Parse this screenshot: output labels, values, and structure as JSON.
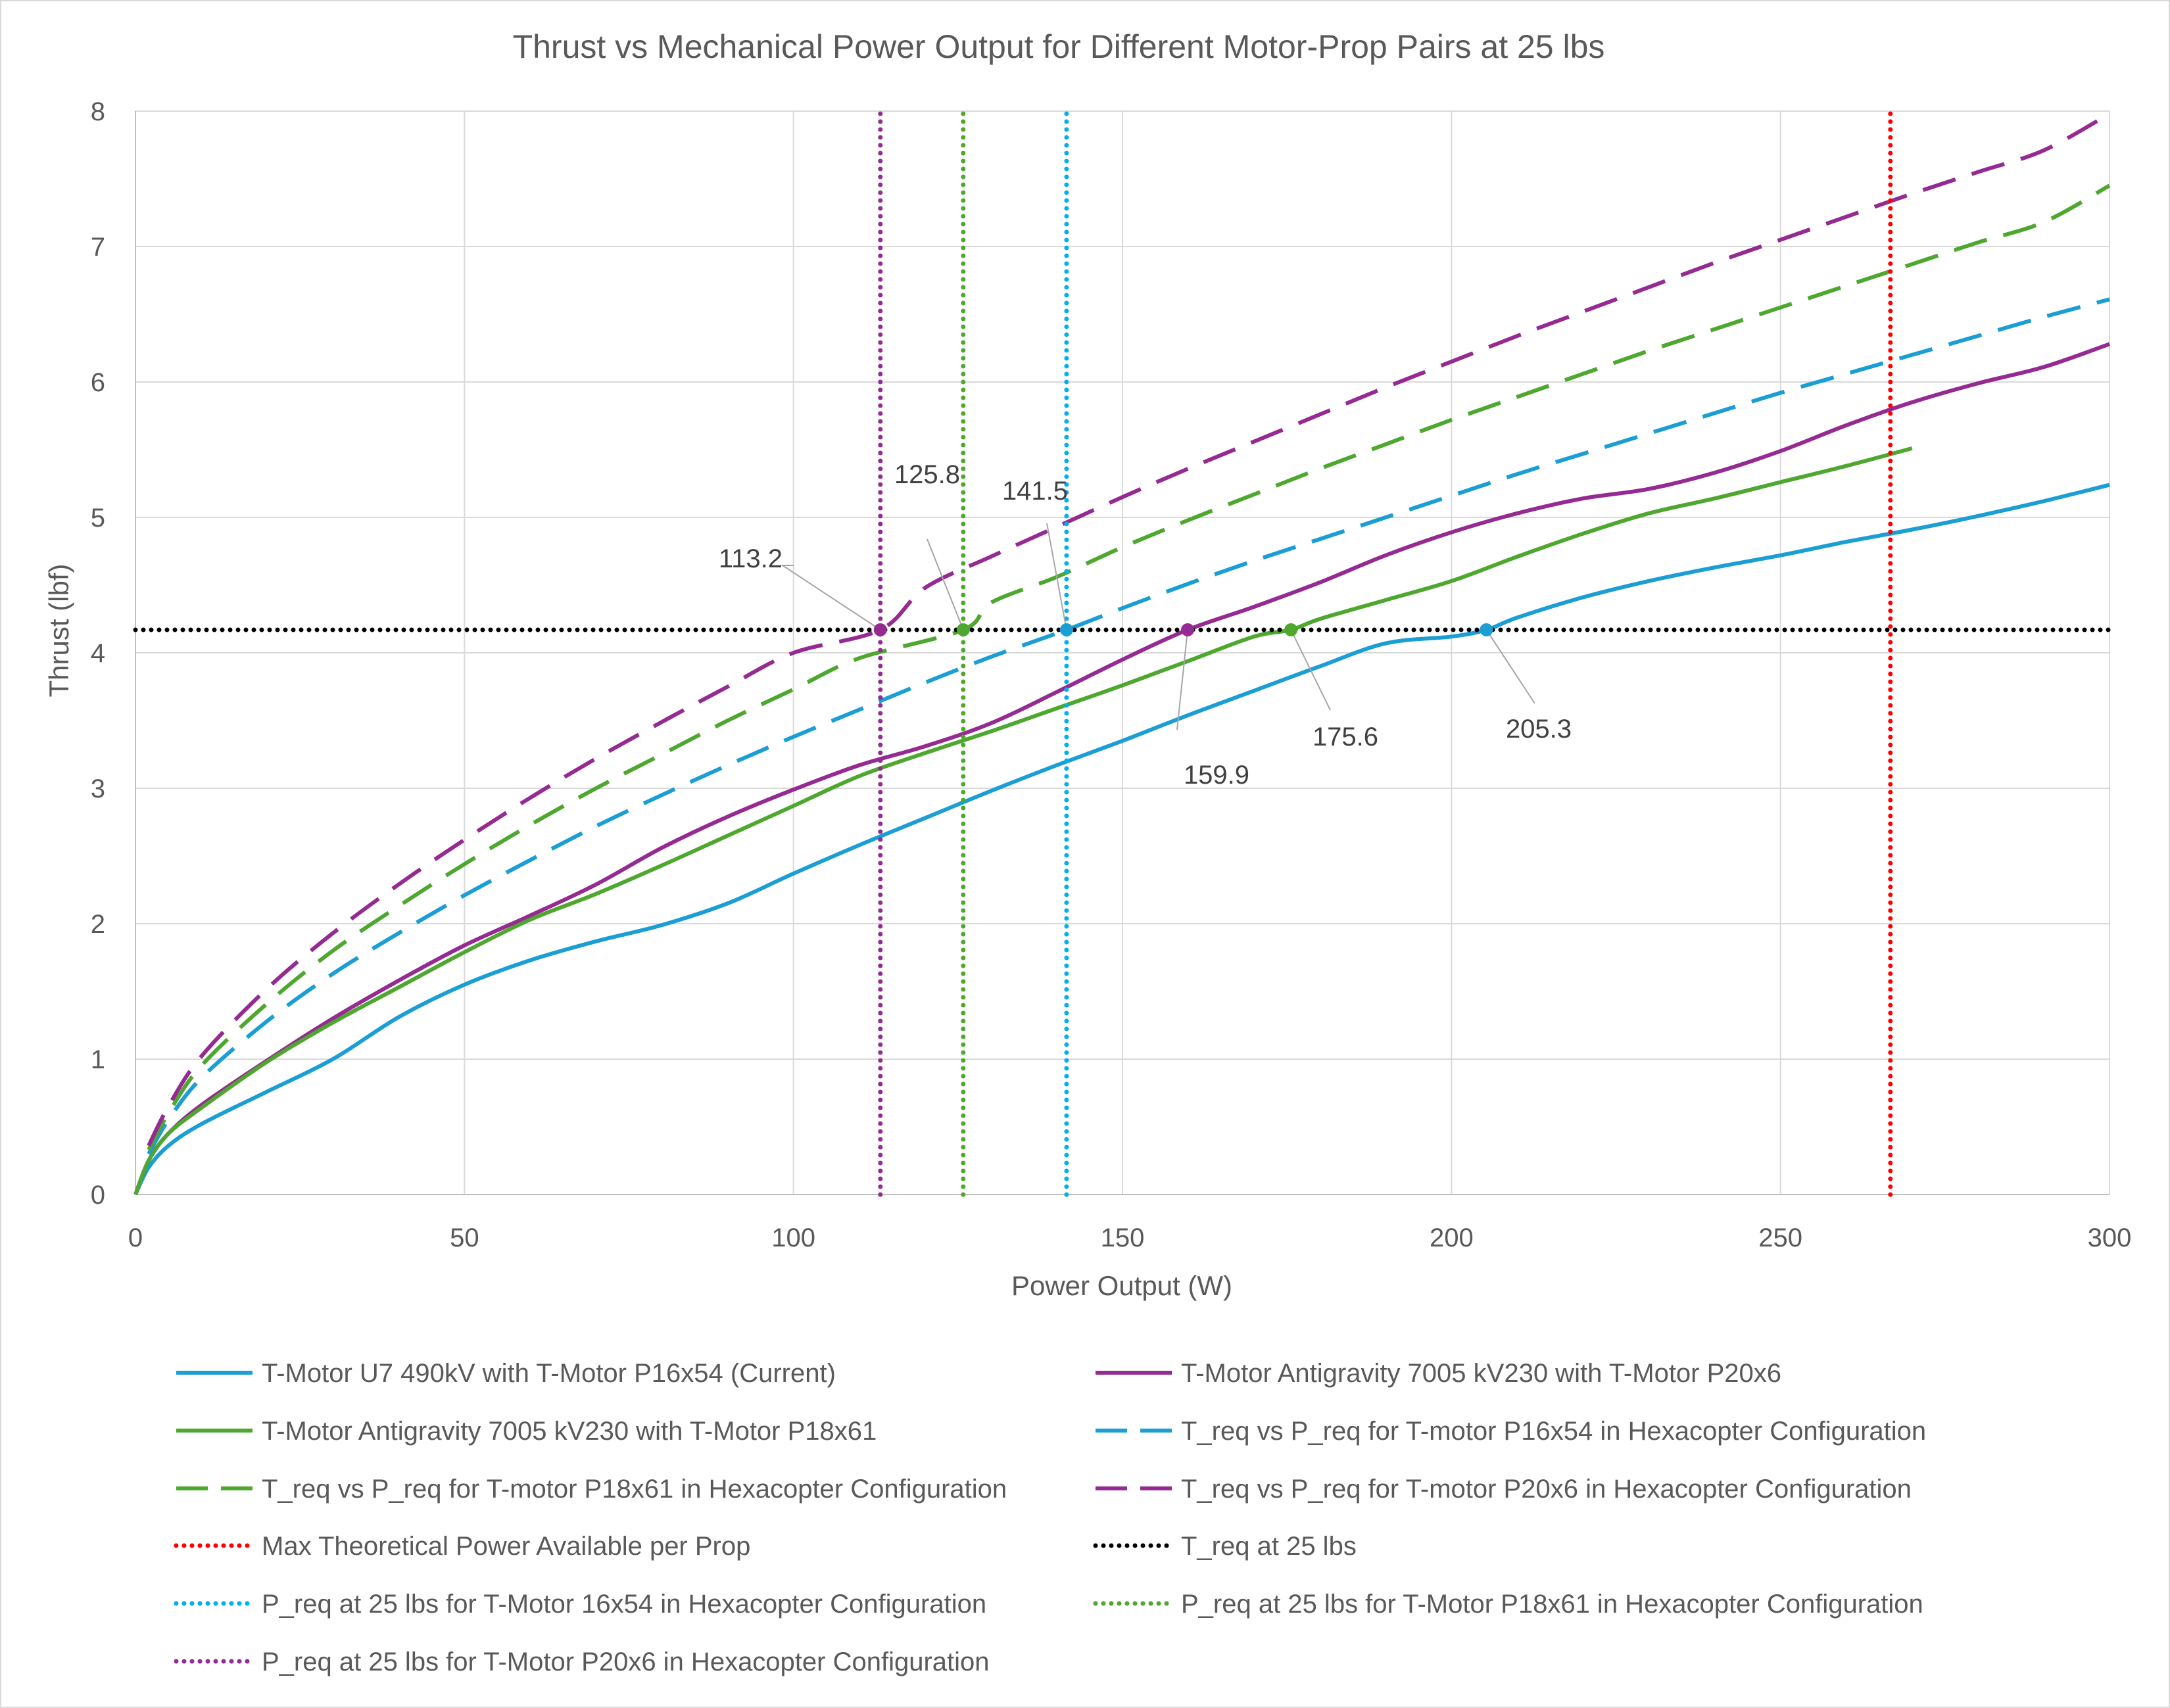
{
  "chart_data": {
    "type": "line",
    "title": "Thrust vs Mechanical Power Output for Different Motor-Prop Pairs at 25 lbs",
    "xlabel": "Power Output (W)",
    "ylabel": "Thrust (lbf)",
    "xlim": [
      0,
      300
    ],
    "ylim": [
      0,
      8
    ],
    "xticks": [
      0,
      50,
      100,
      150,
      200,
      250,
      300
    ],
    "yticks": [
      0,
      1,
      2,
      3,
      4,
      5,
      6,
      7,
      8
    ],
    "grid": true,
    "legend_position": "bottom",
    "series": [
      {
        "name": "T-Motor U7 490kV with T-Motor P16x54 (Current)",
        "color": "#1a9ed4",
        "dash": "solid",
        "x": [
          0,
          2,
          5,
          10,
          20,
          30,
          40,
          50,
          60,
          70,
          80,
          90,
          100,
          110,
          120,
          130,
          140,
          150,
          160,
          170,
          180,
          190,
          200,
          205.3,
          210,
          220,
          230,
          240,
          250,
          260,
          270,
          280,
          290,
          300
        ],
        "y": [
          0,
          0.2,
          0.36,
          0.52,
          0.76,
          1.0,
          1.31,
          1.55,
          1.73,
          1.87,
          1.99,
          2.15,
          2.37,
          2.58,
          2.78,
          2.98,
          3.17,
          3.35,
          3.54,
          3.72,
          3.9,
          4.07,
          4.12,
          4.17,
          4.26,
          4.41,
          4.53,
          4.63,
          4.72,
          4.82,
          4.91,
          5.01,
          5.12,
          5.24
        ]
      },
      {
        "name": "T-Motor Antigravity 7005 kV230 with T-Motor P20x6",
        "color": "#942a92",
        "dash": "solid",
        "x": [
          0,
          2,
          5,
          10,
          20,
          30,
          40,
          50,
          60,
          70,
          80,
          90,
          100,
          110,
          120,
          130,
          140,
          150,
          159.9,
          170,
          180,
          190,
          200,
          210,
          220,
          230,
          240,
          250,
          260,
          270,
          280,
          290,
          300
        ],
        "y": [
          0,
          0.25,
          0.45,
          0.66,
          0.99,
          1.3,
          1.58,
          1.84,
          2.06,
          2.29,
          2.56,
          2.79,
          2.99,
          3.17,
          3.31,
          3.48,
          3.71,
          3.95,
          4.17,
          4.34,
          4.52,
          4.72,
          4.89,
          5.03,
          5.14,
          5.21,
          5.33,
          5.49,
          5.68,
          5.85,
          5.99,
          6.11,
          6.28
        ]
      },
      {
        "name": "T-Motor Antigravity 7005 kV230 with T-Motor P18x61",
        "color": "#4ea72e",
        "dash": "solid",
        "x": [
          0,
          2,
          5,
          10,
          20,
          30,
          40,
          50,
          60,
          70,
          80,
          90,
          100,
          110,
          120,
          130,
          140,
          150,
          160,
          170,
          175.6,
          180,
          190,
          200,
          210,
          220,
          230,
          240,
          250,
          260,
          270
        ],
        "y": [
          0,
          0.25,
          0.45,
          0.64,
          0.98,
          1.27,
          1.53,
          1.79,
          2.03,
          2.22,
          2.43,
          2.65,
          2.87,
          3.09,
          3.26,
          3.42,
          3.59,
          3.76,
          3.94,
          4.12,
          4.17,
          4.25,
          4.39,
          4.53,
          4.71,
          4.88,
          5.03,
          5.14,
          5.26,
          5.38,
          5.51
        ]
      },
      {
        "name": "T_req vs P_req for T-motor P16x54 in Hexacopter Configuration",
        "color": "#1a9ed4",
        "dash": "dashed",
        "x": [
          2,
          5,
          10,
          20,
          30,
          40,
          50,
          60,
          70,
          80,
          90,
          100,
          110,
          120,
          130,
          141.5,
          150,
          160,
          170,
          180,
          190,
          200,
          210,
          220,
          230,
          240,
          250,
          260,
          270,
          280,
          290,
          300
        ],
        "y": [
          0.3,
          0.55,
          0.86,
          1.28,
          1.63,
          1.93,
          2.21,
          2.47,
          2.72,
          2.95,
          3.17,
          3.38,
          3.58,
          3.78,
          3.97,
          4.17,
          4.33,
          4.51,
          4.68,
          4.84,
          5.0,
          5.16,
          5.32,
          5.47,
          5.62,
          5.77,
          5.92,
          6.06,
          6.2,
          6.34,
          6.48,
          6.61
        ]
      },
      {
        "name": "T_req vs P_req for T-motor P18x61 in Hexacopter Configuration",
        "color": "#4ea72e",
        "dash": "dashed",
        "x": [
          2,
          5,
          10,
          20,
          30,
          40,
          50,
          60,
          70,
          80,
          90,
          100,
          110,
          125.8,
          130,
          140,
          150,
          160,
          170,
          180,
          190,
          200,
          210,
          220,
          230,
          240,
          250,
          260,
          270,
          280,
          290,
          300
        ],
        "y": [
          0.33,
          0.6,
          0.95,
          1.41,
          1.8,
          2.13,
          2.44,
          2.73,
          3.0,
          3.25,
          3.5,
          3.73,
          3.96,
          4.17,
          4.37,
          4.56,
          4.78,
          4.98,
          5.17,
          5.36,
          5.54,
          5.72,
          5.89,
          6.06,
          6.23,
          6.39,
          6.55,
          6.71,
          6.87,
          7.03,
          7.18,
          7.45
        ]
      },
      {
        "name": "T_req vs P_req for T-motor P20x6 in Hexacopter Configuration",
        "color": "#942a92",
        "dash": "dashed",
        "x": [
          2,
          5,
          10,
          20,
          30,
          40,
          50,
          60,
          70,
          80,
          90,
          100,
          113.2,
          120,
          130,
          140,
          150,
          160,
          170,
          180,
          190,
          200,
          210,
          220,
          230,
          240,
          250,
          260,
          270,
          280,
          290,
          300
        ],
        "y": [
          0.36,
          0.65,
          1.02,
          1.52,
          1.93,
          2.29,
          2.62,
          2.93,
          3.22,
          3.49,
          3.75,
          4.0,
          4.17,
          4.48,
          4.71,
          4.93,
          5.15,
          5.36,
          5.56,
          5.76,
          5.96,
          6.15,
          6.34,
          6.52,
          6.7,
          6.88,
          7.05,
          7.22,
          7.39,
          7.55,
          7.71,
          7.98
        ]
      },
      {
        "name": "Max Theoretical Power Available per Prop",
        "color": "#ff0000",
        "dash": "dotted",
        "x": [
          266.7,
          266.7
        ],
        "y": [
          0,
          8
        ]
      },
      {
        "name": "T_req at 25 lbs",
        "color": "#000000",
        "dash": "dotted",
        "x": [
          0,
          300
        ],
        "y": [
          4.17,
          4.17
        ]
      },
      {
        "name": "P_req at 25 lbs for T-Motor 16x54 in Hexacopter Configuration",
        "color": "#00b0f0",
        "dash": "dotted",
        "x": [
          141.5,
          141.5
        ],
        "y": [
          0,
          8
        ]
      },
      {
        "name": "P_req at 25 lbs for T-Motor P18x61 in Hexacopter Configuration",
        "color": "#4ea72e",
        "dash": "dotted",
        "x": [
          125.8,
          125.8
        ],
        "y": [
          0,
          8
        ]
      },
      {
        "name": "P_req at 25 lbs for T-Motor P20x6 in Hexacopter Configuration",
        "color": "#942a92",
        "dash": "dotted",
        "x": [
          113.2,
          113.2
        ],
        "y": [
          0,
          8
        ]
      }
    ],
    "markers": [
      {
        "x": 113.2,
        "y": 4.17,
        "label": "113.2",
        "color": "#942a92"
      },
      {
        "x": 125.8,
        "y": 4.17,
        "label": "125.8",
        "color": "#4ea72e"
      },
      {
        "x": 141.5,
        "y": 4.17,
        "label": "141.5",
        "color": "#1a9ed4"
      },
      {
        "x": 159.9,
        "y": 4.17,
        "label": "159.9",
        "color": "#942a92"
      },
      {
        "x": 175.6,
        "y": 4.17,
        "label": "175.6",
        "color": "#4ea72e"
      },
      {
        "x": 205.3,
        "y": 4.17,
        "label": "205.3",
        "color": "#1a9ed4"
      }
    ]
  }
}
